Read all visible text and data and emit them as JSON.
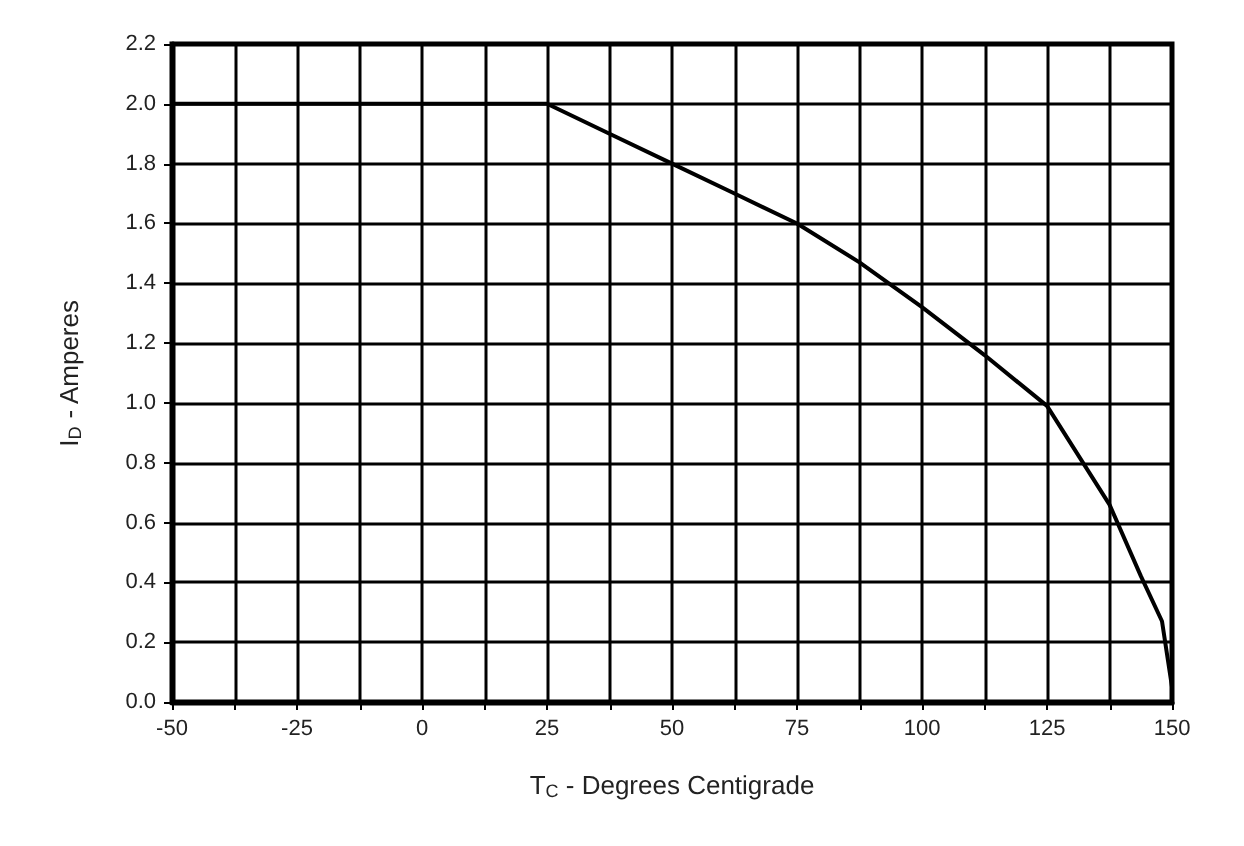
{
  "chart_data": {
    "type": "line",
    "xlabel": "T$_{C}$ - Degrees Centigrade",
    "ylabel": "I$_{D}$ - Amperes",
    "x": [
      -50,
      25,
      37.5,
      50,
      62.5,
      75,
      87.5,
      100,
      112.5,
      125,
      137.5,
      143.8,
      148,
      150
    ],
    "values": [
      2.0,
      2.0,
      1.9,
      1.8,
      1.7,
      1.6,
      1.47,
      1.32,
      1.16,
      0.99,
      0.66,
      0.42,
      0.27,
      0.05
    ],
    "color": "#000000",
    "xlim": [
      -50,
      150
    ],
    "xticks": [
      -50,
      {
        "value": -37.5,
        "label": null
      },
      -25,
      {
        "value": -12.5,
        "label": null
      },
      0,
      {
        "value": 12.5,
        "label": null
      },
      25,
      {
        "value": 37.5,
        "label": null
      },
      50,
      {
        "value": 62.5,
        "label": null
      },
      75,
      {
        "value": 87.5,
        "label": null
      },
      100,
      {
        "value": 112.5,
        "label": null
      },
      125,
      {
        "value": 137.5,
        "label": null
      },
      150
    ],
    "ylim": [
      0,
      2.2
    ],
    "yticks": [
      {
        "value": 0,
        "label": "0.0"
      },
      0.2,
      0.4,
      0.6,
      0.8,
      {
        "value": 1,
        "label": "1.0"
      },
      1.2,
      1.4,
      1.6,
      1.8,
      {
        "value": 2,
        "label": "2.0"
      },
      2.2
    ],
    "grid": true,
    "marker": "none",
    "line_style": "solid"
  }
}
